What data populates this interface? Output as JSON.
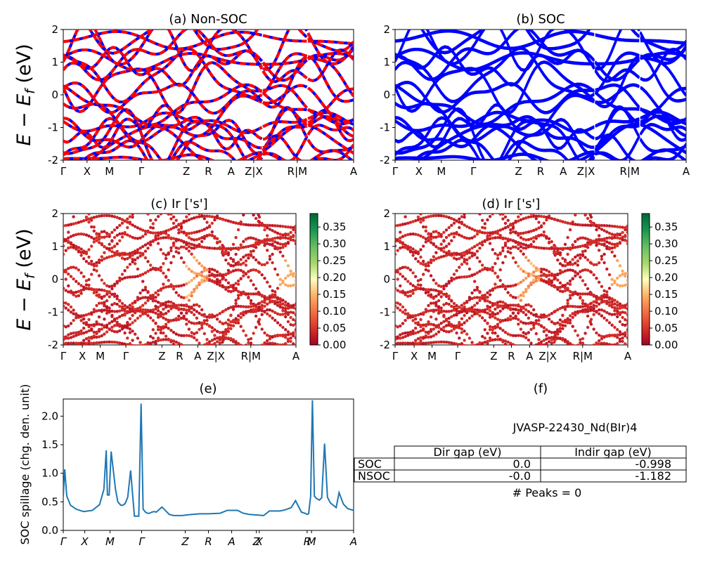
{
  "figure": {
    "panel_a_title": "(a) Non-SOC",
    "panel_b_title": "(b) SOC",
    "panel_c_title": "(c)  Ir ['s']",
    "panel_d_title": "(d) Ir ['s']",
    "panel_e_title": "(e)",
    "panel_f_title": "(f)",
    "band_ylabel": "E − E_f (eV)",
    "spillage_ylabel": "SOC spillage (chg. den. unit)",
    "kpath_labels": [
      "Γ",
      "X",
      "M",
      "Γ",
      "Z",
      "R",
      "A",
      "Z|X",
      "R|M",
      "A"
    ],
    "kpath_labels_e": [
      "Γ",
      "X",
      "M",
      "Γ",
      "Z",
      "R",
      "A",
      "Z",
      "X",
      "R",
      "M",
      "A"
    ],
    "colors": {
      "nonsoc_solid": "#0000ff",
      "nonsoc_dash": "#ff0000",
      "soc": "#0000ff",
      "spillage_line": "#1f77b4"
    }
  },
  "info": {
    "material": "JVASP-22430_Nd(BIr)4",
    "table_headers": [
      "",
      "Dir gap (eV)",
      "Indir gap (eV)"
    ],
    "table_rows": [
      [
        "SOC",
        "0.0",
        "-0.998"
      ],
      [
        "NSOC",
        "-0.0",
        "-1.182"
      ]
    ],
    "peaks_text": "# Peaks = 0"
  },
  "chart_data": [
    {
      "type": "line",
      "title": "(a) Non-SOC",
      "ylabel": "E − E_f (eV)",
      "ylim": [
        -2,
        2
      ],
      "yticks": [
        -2,
        -1,
        0,
        1,
        2
      ],
      "xticklabels": [
        "Γ",
        "X",
        "M",
        "Γ",
        "Z",
        "R",
        "A",
        "Z|X",
        "R|M",
        "A"
      ],
      "xtick_positions": [
        0,
        0.082,
        0.159,
        0.269,
        0.424,
        0.5,
        0.578,
        0.656,
        0.806,
        1.0
      ],
      "breaks": [
        0.684,
        0.839
      ],
      "style": "solid blue with dashed red overlay"
    },
    {
      "type": "line",
      "title": "(b) SOC",
      "ylim": [
        -2,
        2
      ],
      "yticks": [
        -2,
        -1,
        0,
        1,
        2
      ],
      "xticklabels": [
        "Γ",
        "X",
        "M",
        "Γ",
        "Z",
        "R",
        "A",
        "Z|X",
        "R|M",
        "A"
      ],
      "xtick_positions": [
        0,
        0.082,
        0.159,
        0.269,
        0.424,
        0.5,
        0.578,
        0.656,
        0.806,
        1.0
      ],
      "breaks": [
        0.684,
        0.839
      ]
    },
    {
      "type": "scatter",
      "title": "(c)  Ir ['s']",
      "ylabel": "E − E_f (eV)",
      "ylim": [
        -2,
        2
      ],
      "yticks": [
        -2,
        -1,
        0,
        1,
        2
      ],
      "xticklabels": [
        "Γ",
        "X",
        "M",
        "Γ",
        "Z",
        "R",
        "A",
        "Z|X",
        "R|M",
        "A"
      ],
      "colorbar_ticks": [
        "0.00",
        "0.05",
        "0.10",
        "0.15",
        "0.20",
        "0.25",
        "0.30",
        "0.35"
      ],
      "colorbar_range": [
        0,
        0.39
      ],
      "colormap": "RdYlGn"
    },
    {
      "type": "scatter",
      "title": "(d) Ir ['s']",
      "ylim": [
        -2,
        2
      ],
      "yticks": [
        -2,
        -1,
        0,
        1,
        2
      ],
      "xticklabels": [
        "Γ",
        "X",
        "M",
        "Γ",
        "Z",
        "R",
        "A",
        "Z|X",
        "R|M",
        "A"
      ],
      "colorbar_ticks": [
        "0.00",
        "0.05",
        "0.10",
        "0.15",
        "0.20",
        "0.25",
        "0.30",
        "0.35"
      ],
      "colorbar_range": [
        0,
        0.39
      ],
      "colormap": "RdYlGn"
    },
    {
      "type": "line",
      "title": "(e)",
      "ylabel": "SOC spillage (chg. den. unit)",
      "ylim": [
        0,
        2.3
      ],
      "yticks": [
        0.0,
        0.5,
        1.0,
        1.5,
        2.0
      ],
      "xticklabels": [
        "Γ",
        "X",
        "M",
        "Γ",
        "Z",
        "R",
        "A",
        "Z",
        "X",
        "R",
        "M",
        "A"
      ],
      "xtick_positions": [
        0,
        0.074,
        0.161,
        0.27,
        0.42,
        0.5,
        0.58,
        0.665,
        0.675,
        0.84,
        0.855,
        1.0
      ],
      "series": [
        {
          "x": [
            0,
            0.005,
            0.012,
            0.025,
            0.045,
            0.07,
            0.1,
            0.125,
            0.14,
            0.148,
            0.152,
            0.158,
            0.165,
            0.18,
            0.188,
            0.198,
            0.205,
            0.213,
            0.222,
            0.232,
            0.245,
            0.26,
            0.268,
            0.275,
            0.283,
            0.29,
            0.297,
            0.305,
            0.313,
            0.32,
            0.34,
            0.365,
            0.38,
            0.39,
            0.395,
            0.41,
            0.425,
            0.445,
            0.47,
            0.5,
            0.54,
            0.565,
            0.575,
            0.6,
            0.62,
            0.64,
            0.665,
            0.69,
            0.71,
            0.735,
            0.745,
            0.757,
            0.77,
            0.785,
            0.8,
            0.82,
            0.832,
            0.84,
            0.845,
            0.852,
            0.858,
            0.865,
            0.872,
            0.882,
            0.89,
            0.9,
            0.91,
            0.92,
            0.93,
            0.94,
            0.95,
            0.965,
            0.98,
            1.0
          ],
          "y": [
            0.6,
            1.07,
            0.6,
            0.44,
            0.37,
            0.33,
            0.35,
            0.45,
            0.72,
            1.4,
            0.62,
            0.62,
            1.38,
            0.72,
            0.5,
            0.44,
            0.44,
            0.47,
            0.58,
            1.05,
            0.25,
            0.25,
            2.22,
            0.37,
            0.32,
            0.3,
            0.3,
            0.32,
            0.33,
            0.32,
            0.41,
            0.28,
            0.26,
            0.26,
            0.26,
            0.26,
            0.27,
            0.28,
            0.29,
            0.29,
            0.3,
            0.35,
            0.35,
            0.35,
            0.3,
            0.28,
            0.27,
            0.26,
            0.34,
            0.34,
            0.34,
            0.35,
            0.37,
            0.4,
            0.52,
            0.32,
            0.3,
            0.28,
            0.29,
            0.6,
            2.28,
            0.6,
            0.56,
            0.53,
            0.57,
            1.52,
            0.58,
            0.48,
            0.44,
            0.4,
            0.66,
            0.46,
            0.38,
            0.35
          ]
        }
      ]
    }
  ]
}
